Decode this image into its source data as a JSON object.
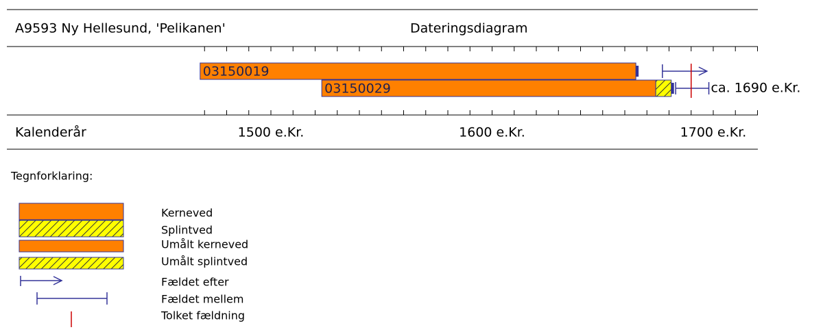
{
  "chart_data": {
    "type": "dating",
    "title": "A9593 Ny Hellesund, 'Pelikanen'",
    "subtitle": "Dateringsdiagram",
    "x_label": "Kalenderår",
    "xlim": [
      1380,
      1720
    ],
    "xticks": [
      {
        "value": 1500,
        "label": "1500 e.Kr."
      },
      {
        "value": 1600,
        "label": "1600 e.Kr."
      },
      {
        "value": 1700,
        "label": "1700 e.Kr."
      }
    ],
    "minor_xticks": [
      1470,
      1480,
      1490,
      1500,
      1510,
      1520,
      1530,
      1540,
      1550,
      1560,
      1570,
      1580,
      1590,
      1600,
      1610,
      1620,
      1630,
      1640,
      1650,
      1660,
      1670,
      1680,
      1690,
      1700,
      1710,
      1720
    ],
    "heartwood_color": "#ff8000",
    "sapwood_color": "#ffff00",
    "outline_color": "#333399",
    "felling_color": "#cc0000",
    "samples": [
      {
        "name": "03150019",
        "heartwood": [
          1468,
          1665
        ],
        "felled_after": 1677
      },
      {
        "name": "03150029",
        "heartwood": [
          1523,
          1674
        ],
        "sapwood": [
          1674,
          1681
        ],
        "felled_between": [
          1683,
          1698
        ]
      }
    ],
    "interpreted_felling": {
      "value": 1690,
      "label": "ca. 1690 e.Kr."
    },
    "legend": {
      "title": "Tegnforklaring:",
      "items": [
        "Kerneved",
        "Splintved",
        "Umålt kerneved",
        "Umålt splintved",
        "Fældet efter",
        "Fældet mellem",
        "Tolket fældning"
      ]
    }
  }
}
